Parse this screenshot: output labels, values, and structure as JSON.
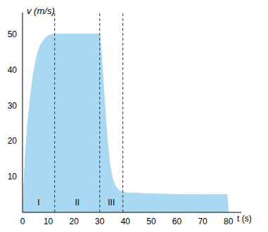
{
  "chart_data": {
    "type": "area",
    "x_label": "t (s)",
    "y_label": "v (m/s)",
    "x": [
      0,
      1,
      2,
      3,
      4,
      5,
      6,
      7,
      8,
      9,
      10,
      11,
      12.5,
      20,
      30,
      30.5,
      31,
      31.5,
      32,
      32.5,
      33,
      34,
      35,
      36,
      37,
      38,
      40,
      50,
      60,
      70,
      79.5,
      80
    ],
    "values": [
      0,
      15,
      25,
      32,
      38,
      42,
      45,
      47,
      48,
      49,
      49.5,
      49.8,
      50,
      50,
      50,
      46,
      41,
      35,
      30,
      25,
      20,
      13,
      9.5,
      7.5,
      6.5,
      6,
      5.5,
      5.2,
      5,
      5,
      5,
      0
    ],
    "color": "#a9d9f2",
    "xlim": [
      0,
      85
    ],
    "ylim": [
      0,
      56
    ],
    "xticks": [
      0,
      10,
      20,
      30,
      40,
      50,
      60,
      70,
      80
    ],
    "yticks": [
      10,
      20,
      30,
      40,
      50
    ],
    "phases": [
      {
        "label": "I",
        "start": 0,
        "end": 12.5
      },
      {
        "label": "II",
        "start": 12.5,
        "end": 30
      },
      {
        "label": "III",
        "start": 30,
        "end": 39
      }
    ]
  }
}
